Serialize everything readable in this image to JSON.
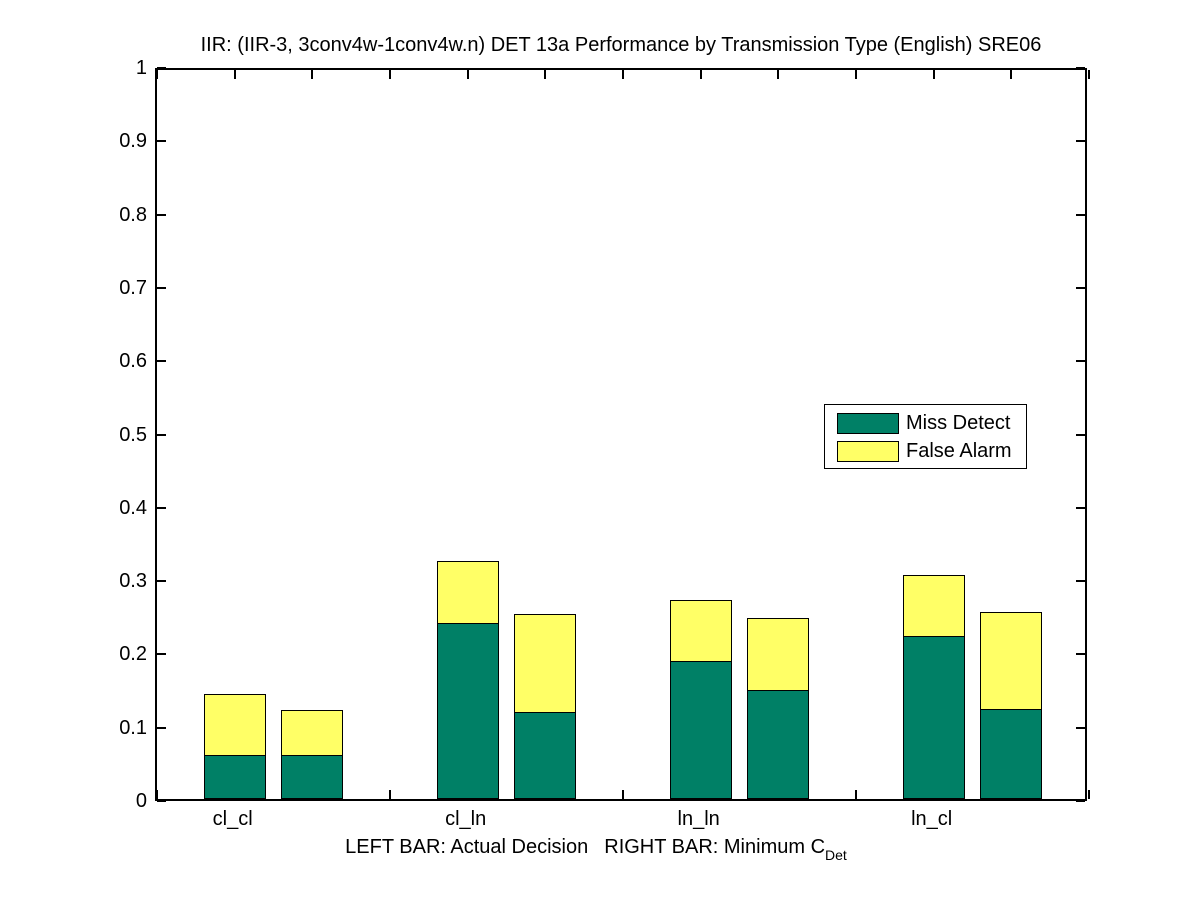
{
  "title": "IIR: (IIR-3, 3conv4w-1conv4w.n) DET 13a Performance by Transmission Type (English) SRE06",
  "xlabel": {
    "left_text": "LEFT BAR: Actual Decision",
    "right_text": "RIGHT BAR: Minimum C",
    "right_subscript": "Det"
  },
  "colors": {
    "miss_detect": "#008066",
    "false_alarm": "#FFFF66",
    "axis": "#000000",
    "background": "#FFFFFF"
  },
  "chart_data": {
    "type": "bar",
    "stacked": true,
    "title": "IIR: (IIR-3, 3conv4w-1conv4w.n) DET 13a Performance by Transmission Type (English) SRE06",
    "categories": [
      "cl_cl",
      "cl_ln",
      "ln_ln",
      "ln_cl"
    ],
    "bar_meaning": {
      "left": "Actual Decision",
      "right": "Minimum C_Det"
    },
    "segments": [
      "Miss Detect",
      "False Alarm"
    ],
    "groups": [
      {
        "category": "cl_cl",
        "left": {
          "miss_detect": 0.059,
          "false_alarm": 0.084
        },
        "right": {
          "miss_detect": 0.059,
          "false_alarm": 0.063
        }
      },
      {
        "category": "cl_ln",
        "left": {
          "miss_detect": 0.239,
          "false_alarm": 0.086
        },
        "right": {
          "miss_detect": 0.118,
          "false_alarm": 0.134
        }
      },
      {
        "category": "ln_ln",
        "left": {
          "miss_detect": 0.187,
          "false_alarm": 0.085
        },
        "right": {
          "miss_detect": 0.147,
          "false_alarm": 0.1
        }
      },
      {
        "category": "ln_cl",
        "left": {
          "miss_detect": 0.221,
          "false_alarm": 0.084
        },
        "right": {
          "miss_detect": 0.122,
          "false_alarm": 0.133
        }
      }
    ],
    "ylim": [
      0,
      1
    ],
    "yticks": [
      "0",
      "0.1",
      "0.2",
      "0.3",
      "0.4",
      "0.5",
      "0.6",
      "0.7",
      "0.8",
      "0.9",
      "1"
    ],
    "grid": false,
    "legend": {
      "position": "middle-right",
      "entries": [
        {
          "label": "Miss Detect",
          "color": "#008066"
        },
        {
          "label": "False Alarm",
          "color": "#FFFF66"
        }
      ]
    }
  }
}
